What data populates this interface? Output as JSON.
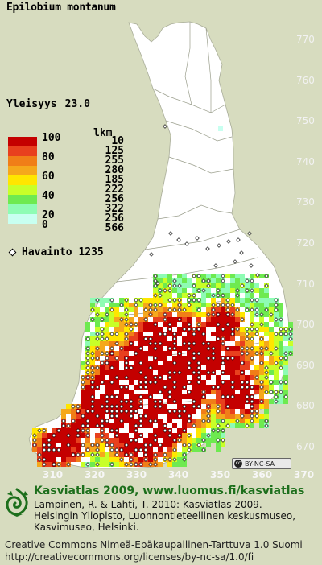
{
  "map": {
    "title": "Epilobium montanum",
    "prevalence_label": "Yleisyys",
    "prevalence_value": "23.0",
    "legend": {
      "count_header": "lkm",
      "classes": [
        {
          "label": "100",
          "color": "#c40000",
          "count": "10"
        },
        {
          "label": "",
          "color": "#e8401e",
          "count": "125"
        },
        {
          "label": "80",
          "color": "#f07e18",
          "count": "255"
        },
        {
          "label": "",
          "color": "#f5a81c",
          "count": "280"
        },
        {
          "label": "60",
          "color": "#ffe600",
          "count": "185"
        },
        {
          "label": "",
          "color": "#c8ff28",
          "count": "222"
        },
        {
          "label": "40",
          "color": "#6eea50",
          "count": "256"
        },
        {
          "label": "",
          "color": "#8efcb4",
          "count": "322"
        },
        {
          "label": "20",
          "color": "#c8fff0",
          "count": "256"
        },
        {
          "label": "0",
          "color": "",
          "count": "566"
        }
      ]
    },
    "observation_label": "Havainto",
    "observation_count": "1235",
    "y_axis": [
      "770",
      "760",
      "750",
      "740",
      "730",
      "720",
      "710",
      "700",
      "690",
      "680",
      "670"
    ],
    "x_axis": [
      "310",
      "320",
      "330",
      "340",
      "350",
      "360",
      "370"
    ],
    "license_badge": "BY-NC-SA",
    "license_badge_icon": "cc-icon"
  },
  "footer": {
    "brand": "Kasviatlas 2009, www.luomus.fi/kasviatlas",
    "citation": "Lampinen, R. & Lahti, T. 2010: Kasviatlas 2009. – Helsingin Yliopisto, Luonnontieteellinen keskusmuseo, Kasvimuseo, Helsinki.",
    "license_line1": "Creative Commons Nimeä-Epäkaupallinen-Tarttuva 1.0 Suomi",
    "license_url": "http://creativecommons.org/licenses/by-nc-sa/1.0/fi",
    "logo_icon": "spiral-leaf-logo-icon"
  }
}
